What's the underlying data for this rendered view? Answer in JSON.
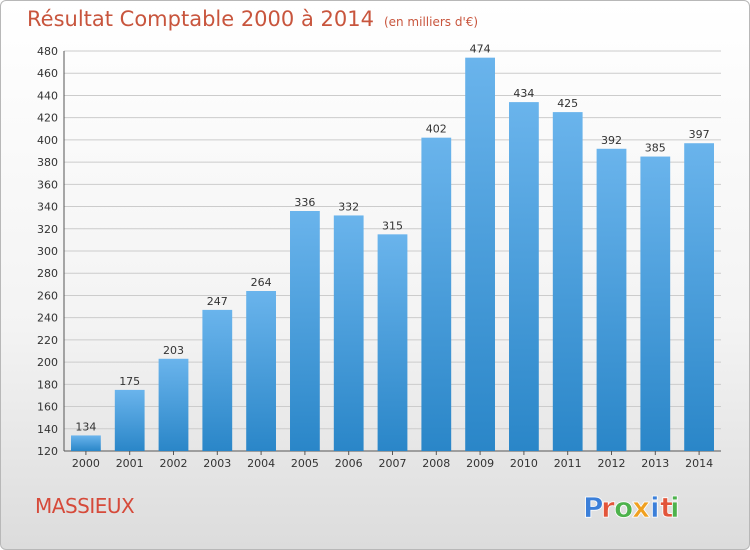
{
  "header": {
    "title": "Résultat Comptable 2000 à 2014",
    "unit": "(en milliers d'€)"
  },
  "place_name": "MASSIEUX",
  "logo": {
    "text": "Proxiti",
    "letter_colors": [
      "#3b7fd9",
      "#e2553a",
      "#4db24c",
      "#f0a020",
      "#3b7fd9",
      "#e2553a",
      "#4db24c"
    ]
  },
  "colors": {
    "bar_top": "#6ab4ec",
    "bar_bottom": "#2a86c8",
    "title": "#c8553d",
    "grid": "#cccccc"
  },
  "chart_data": {
    "type": "bar",
    "title": "Résultat Comptable 2000 à 2014",
    "categories": [
      "2000",
      "2001",
      "2002",
      "2003",
      "2004",
      "2005",
      "2006",
      "2007",
      "2008",
      "2009",
      "2010",
      "2011",
      "2012",
      "2013",
      "2014"
    ],
    "values": [
      134,
      175,
      203,
      247,
      264,
      336,
      332,
      315,
      402,
      474,
      434,
      425,
      392,
      385,
      397
    ],
    "ylim": [
      120,
      480
    ],
    "yticks": [
      120,
      140,
      160,
      180,
      200,
      220,
      240,
      260,
      280,
      300,
      320,
      340,
      360,
      380,
      400,
      420,
      440,
      460,
      480
    ],
    "grid": true,
    "data_labels": true
  }
}
